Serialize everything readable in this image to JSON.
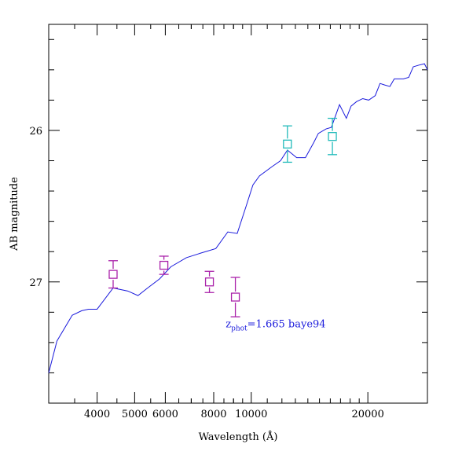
{
  "chart_data": {
    "type": "scatter",
    "xlabel": "Wavelength (Å)",
    "ylabel": "AB magnitude",
    "x_scale": "log",
    "xlim": [
      3000,
      28500
    ],
    "ylim": [
      27.8,
      25.3
    ],
    "y_inverted": true,
    "grid": false,
    "x_ticks": [
      {
        "value": 4000,
        "label": "4000"
      },
      {
        "value": 5000,
        "label": "5000"
      },
      {
        "value": 6000,
        "label": "6000"
      },
      {
        "value": 8000,
        "label": "8000"
      },
      {
        "value": 10000,
        "label": "10000"
      },
      {
        "value": 20000,
        "label": "20000"
      }
    ],
    "y_ticks": [
      {
        "value": 26,
        "label": "26"
      },
      {
        "value": 27,
        "label": "27"
      }
    ],
    "annotation": {
      "label_main": "z",
      "label_sub": "phot",
      "label_rest": "=1.665 baye94",
      "x": 9000,
      "y": 27.28,
      "color": "#1a1adc"
    },
    "series": [
      {
        "kind": "line",
        "color": "#1a1adc",
        "x": [
          3000,
          3150,
          3450,
          3650,
          3800,
          4000,
          4400,
          4800,
          5100,
          5400,
          5800,
          6200,
          6800,
          7400,
          8100,
          8700,
          9200,
          9700,
          10100,
          10500,
          11300,
          11900,
          12400,
          13100,
          13800,
          14500,
          14900,
          15600,
          16100,
          16900,
          17600,
          18100,
          18700,
          19400,
          20100,
          20900,
          21500,
          22100,
          22800,
          23400,
          24000,
          24700,
          25500,
          26200,
          27000,
          28000,
          28500
        ],
        "y": [
          27.6,
          27.39,
          27.22,
          27.19,
          27.18,
          27.18,
          27.04,
          27.06,
          27.09,
          27.04,
          26.98,
          26.9,
          26.84,
          26.81,
          26.78,
          26.67,
          26.68,
          26.5,
          26.36,
          26.3,
          26.24,
          26.2,
          26.13,
          26.18,
          26.18,
          26.08,
          26.02,
          25.99,
          25.98,
          25.83,
          25.92,
          25.84,
          25.81,
          25.79,
          25.8,
          25.77,
          25.69,
          25.7,
          25.71,
          25.66,
          25.66,
          25.66,
          25.65,
          25.58,
          25.57,
          25.56,
          25.6
        ]
      },
      {
        "kind": "points",
        "color": "#aa22aa",
        "points": [
          {
            "x": 4400,
            "y": 26.95,
            "err": 0.09
          },
          {
            "x": 5950,
            "y": 26.89,
            "err": 0.06
          },
          {
            "x": 7800,
            "y": 27.0,
            "err": 0.07
          },
          {
            "x": 9100,
            "y": 27.1,
            "err": 0.13
          }
        ]
      },
      {
        "kind": "points",
        "color": "#22bbbb",
        "points": [
          {
            "x": 12400,
            "y": 26.09,
            "err": 0.12
          },
          {
            "x": 16200,
            "y": 26.04,
            "err": 0.12
          }
        ]
      }
    ]
  }
}
